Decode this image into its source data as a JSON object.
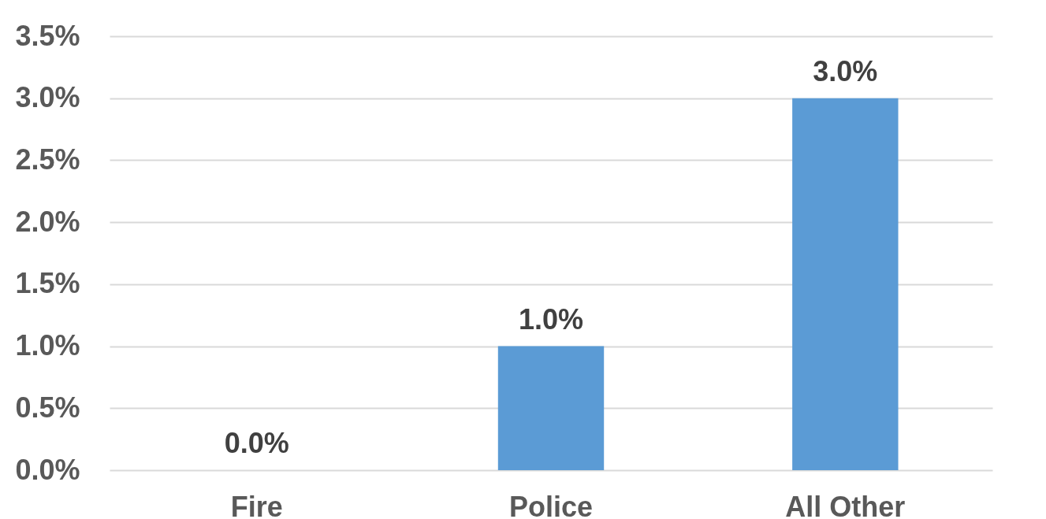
{
  "chart_data": {
    "type": "bar",
    "categories": [
      "Fire",
      "Police",
      "All Other"
    ],
    "values": [
      0,
      1.0,
      3.0
    ],
    "value_labels": [
      "0.0%",
      "1.0%",
      "3.0%"
    ],
    "color": "#5b9bd5",
    "ylim": [
      0,
      3.5
    ],
    "yticks": [
      {
        "value": 0,
        "label": "0.0%"
      },
      {
        "value": 0.5,
        "label": "0.5%"
      },
      {
        "value": 1,
        "label": "1.0%"
      },
      {
        "value": 1.5,
        "label": "1.5%"
      },
      {
        "value": 2,
        "label": "2.0%"
      },
      {
        "value": 2.5,
        "label": "2.5%"
      },
      {
        "value": 3,
        "label": "3.0%"
      },
      {
        "value": 3.5,
        "label": "3.5%"
      }
    ],
    "grid": "y"
  }
}
